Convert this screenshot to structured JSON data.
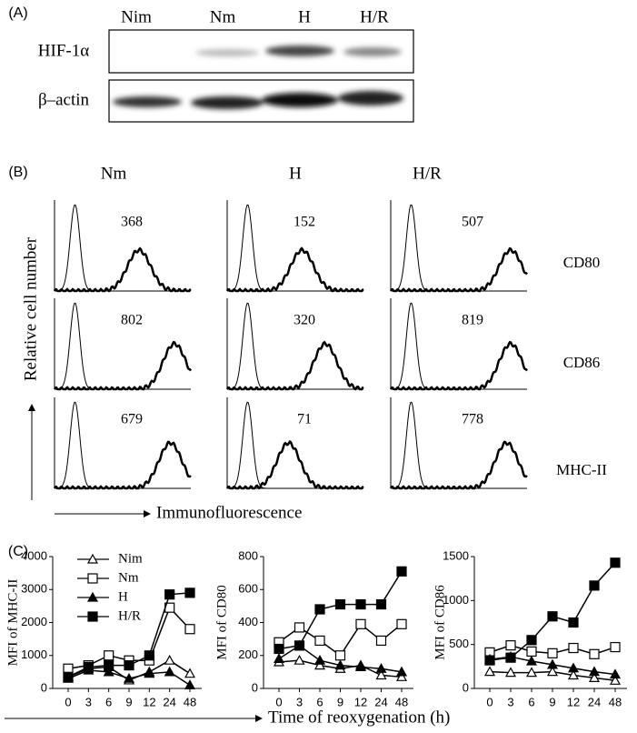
{
  "panel_a": {
    "label": "(A)",
    "lanes": [
      "Nim",
      "Nm",
      "H",
      "H/R"
    ],
    "rows": [
      "HIF-1α",
      "β–actin"
    ]
  },
  "panel_b": {
    "label": "(B)",
    "columns": [
      "Nm",
      "H",
      "H/R"
    ],
    "rows": [
      "CD80",
      "CD86",
      "MHC-II"
    ],
    "values": [
      [
        368,
        152,
        507
      ],
      [
        802,
        320,
        819
      ],
      [
        679,
        71,
        778
      ]
    ],
    "y_label": "Relative cell number",
    "x_label": "Immunofluorescence"
  },
  "panel_c": {
    "label": "(C)",
    "x_label": "Time of reoxygenation (h)"
  },
  "chart_data": [
    {
      "type": "line",
      "y_label": "MFI of MHC-II",
      "categories": [
        "0",
        "3",
        "6",
        "9",
        "12",
        "24",
        "48"
      ],
      "ylim": [
        0,
        4000
      ],
      "yticks": [
        0,
        1000,
        2000,
        3000,
        4000
      ],
      "legend": "top-left",
      "series": [
        {
          "name": "Nim",
          "marker": "open-triangle",
          "color": "#000000",
          "values": [
            350,
            600,
            650,
            250,
            500,
            850,
            450
          ]
        },
        {
          "name": "Nm",
          "marker": "open-square",
          "color": "#000000",
          "values": [
            600,
            700,
            1000,
            850,
            850,
            2450,
            1800
          ]
        },
        {
          "name": "H",
          "marker": "filled-triangle",
          "color": "#000000",
          "values": [
            300,
            550,
            500,
            300,
            450,
            500,
            100
          ]
        },
        {
          "name": "H/R",
          "marker": "filled-square",
          "color": "#000000",
          "values": [
            350,
            650,
            700,
            700,
            1000,
            2850,
            2900
          ]
        }
      ]
    },
    {
      "type": "line",
      "y_label": "MFI of CD80",
      "categories": [
        "0",
        "3",
        "6",
        "9",
        "12",
        "24",
        "48"
      ],
      "ylim": [
        0,
        800
      ],
      "yticks": [
        0,
        200,
        400,
        600,
        800
      ],
      "series": [
        {
          "marker": "open-triangle",
          "color": "#000000",
          "values": [
            160,
            170,
            140,
            120,
            140,
            80,
            70
          ]
        },
        {
          "marker": "open-square",
          "color": "#000000",
          "values": [
            280,
            370,
            290,
            200,
            390,
            290,
            390
          ]
        },
        {
          "marker": "filled-triangle",
          "color": "#000000",
          "values": [
            180,
            260,
            170,
            140,
            130,
            120,
            100
          ]
        },
        {
          "marker": "filled-square",
          "color": "#000000",
          "values": [
            240,
            260,
            480,
            510,
            510,
            510,
            710
          ]
        }
      ]
    },
    {
      "type": "line",
      "y_label": "MFI of CD86",
      "categories": [
        "0",
        "3",
        "6",
        "9",
        "12",
        "24",
        "48"
      ],
      "ylim": [
        0,
        1500
      ],
      "yticks": [
        0,
        500,
        1000,
        1500
      ],
      "series": [
        {
          "marker": "open-triangle",
          "color": "#000000",
          "values": [
            190,
            180,
            180,
            190,
            150,
            120,
            90
          ]
        },
        {
          "marker": "open-square",
          "color": "#000000",
          "values": [
            410,
            490,
            420,
            400,
            460,
            390,
            470
          ]
        },
        {
          "marker": "filled-triangle",
          "color": "#000000",
          "values": [
            330,
            360,
            310,
            270,
            230,
            190,
            160
          ]
        },
        {
          "marker": "filled-square",
          "color": "#000000",
          "values": [
            320,
            350,
            550,
            820,
            750,
            1170,
            1430
          ]
        }
      ]
    }
  ]
}
